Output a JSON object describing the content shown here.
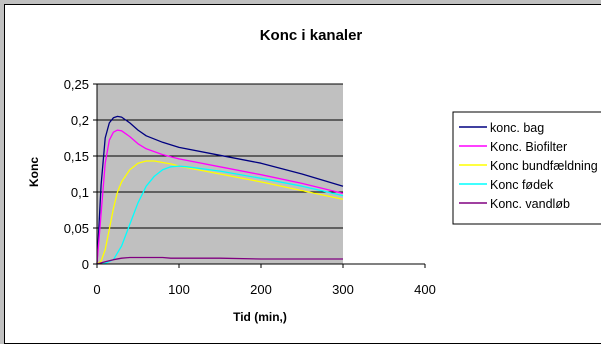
{
  "chart_data": {
    "type": "line",
    "title": "Konc i kanaler",
    "xlabel": "Tid (min,)",
    "ylabel": "Konc",
    "xlim": [
      0,
      400
    ],
    "ylim": [
      0,
      0.25
    ],
    "xticks": [
      "0",
      "100",
      "200",
      "300",
      "400"
    ],
    "yticks": [
      "0",
      "0,05",
      "0,1",
      "0,15",
      "0,2",
      "0,25"
    ],
    "grid": true,
    "plot_background": "#c0c0c0",
    "legend_placement": "right",
    "series": [
      {
        "name": "konc. bag",
        "color": "#000080",
        "x": [
          0,
          5,
          10,
          15,
          20,
          25,
          30,
          40,
          50,
          60,
          80,
          100,
          150,
          200,
          250,
          300
        ],
        "y": [
          0,
          0.11,
          0.175,
          0.196,
          0.203,
          0.205,
          0.204,
          0.196,
          0.186,
          0.178,
          0.169,
          0.162,
          0.151,
          0.14,
          0.125,
          0.108
        ]
      },
      {
        "name": "Konc. Biofilter",
        "color": "#ff00ff",
        "x": [
          0,
          5,
          10,
          15,
          20,
          25,
          30,
          40,
          50,
          60,
          80,
          100,
          150,
          200,
          250,
          300
        ],
        "y": [
          0,
          0.07,
          0.14,
          0.172,
          0.183,
          0.186,
          0.185,
          0.177,
          0.167,
          0.16,
          0.152,
          0.146,
          0.135,
          0.124,
          0.112,
          0.098
        ]
      },
      {
        "name": "Konc bundfældning",
        "color": "#ffff00",
        "x": [
          0,
          5,
          10,
          15,
          20,
          25,
          30,
          40,
          50,
          60,
          70,
          80,
          90,
          100,
          150,
          200,
          250,
          300
        ],
        "y": [
          0,
          0.004,
          0.02,
          0.048,
          0.077,
          0.1,
          0.114,
          0.131,
          0.14,
          0.143,
          0.143,
          0.141,
          0.139,
          0.136,
          0.125,
          0.114,
          0.102,
          0.09
        ]
      },
      {
        "name": "Konc fødek",
        "color": "#00ffff",
        "x": [
          0,
          10,
          20,
          30,
          40,
          50,
          60,
          70,
          80,
          90,
          100,
          110,
          150,
          200,
          250,
          300
        ],
        "y": [
          0,
          0.001,
          0.006,
          0.025,
          0.055,
          0.085,
          0.108,
          0.122,
          0.131,
          0.135,
          0.136,
          0.135,
          0.129,
          0.119,
          0.108,
          0.095
        ]
      },
      {
        "name": "Konc. vandløb",
        "color": "#800080",
        "x": [
          0,
          10,
          20,
          30,
          40,
          50,
          60,
          70,
          80,
          90,
          100,
          150,
          200,
          250,
          300
        ],
        "y": [
          0,
          0.003,
          0.006,
          0.008,
          0.009,
          0.009,
          0.009,
          0.009,
          0.009,
          0.008,
          0.008,
          0.008,
          0.007,
          0.007,
          0.007
        ]
      }
    ]
  }
}
